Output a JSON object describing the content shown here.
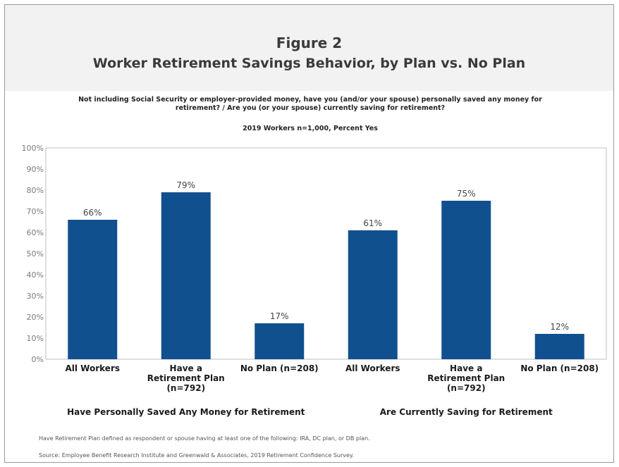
{
  "figure_number": "Figure 2",
  "figure_title": "Worker Retirement Savings Behavior, by Plan vs. No Plan",
  "question": "Not including Social Security or employer-provided money, have you (and/or your spouse) personally saved any money for retirement? / Are you (or your spouse) currently saving for retirement?",
  "sample_note": "2019 Workers n=1,000, Percent Yes",
  "footnotes": {
    "plan_definition": "Have Retirement Plan defined as respondent or spouse having at least one of the following: IRA, DC plan, or DB plan.",
    "source": "Source:  Employee Benefit Research Institute and Greenwald & Associates, 2019 Retirement Confidence Survey."
  },
  "colors": {
    "bar": "#11508f",
    "header_band": "#f2f2f2"
  },
  "chart_data": {
    "type": "bar",
    "ylim": [
      0,
      100
    ],
    "y_ticks": [
      "0%",
      "10%",
      "20%",
      "30%",
      "40%",
      "50%",
      "60%",
      "70%",
      "80%",
      "90%",
      "100%"
    ],
    "categories": [
      "All Workers",
      "Have a Retirement  Plan (n=792)",
      "No Plan (n=208)",
      "All Workers",
      "Have a Retirement  Plan (n=792)",
      "No Plan (n=208)"
    ],
    "values": [
      66,
      79,
      17,
      61,
      75,
      12
    ],
    "data_labels": [
      "66%",
      "79%",
      "17%",
      "61%",
      "75%",
      "12%"
    ],
    "groups": [
      "Have Personally Saved Any Money for Retirement",
      "Are Currently Saving for Retirement"
    ],
    "grid": false
  }
}
